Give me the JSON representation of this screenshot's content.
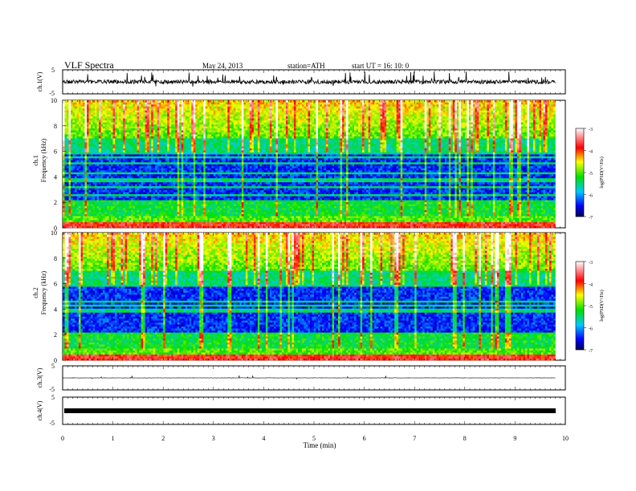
{
  "header": {
    "title": "VLF  Spectra",
    "date": "May 24, 2013",
    "station": "station=ATH",
    "start": "start  UT  =    16: 10: 0"
  },
  "chart_data": [
    {
      "id": "ch1_waveform",
      "type": "line",
      "ylabel": "ch.1(V)",
      "ylim": [
        -5,
        5
      ],
      "yticks": [
        "5",
        "-5"
      ],
      "xlim": [
        0,
        10
      ]
    },
    {
      "id": "ch1_spectrogram",
      "type": "heatmap",
      "ylabel_line1": "ch.1",
      "ylabel_line2": "Frequency  (kHz)",
      "ylim": [
        0,
        10
      ],
      "yticks": [
        "0",
        "2",
        "4",
        "6",
        "8",
        "10"
      ],
      "xlim": [
        0,
        10
      ],
      "data_end_min": 9.8,
      "colorbar": {
        "label": "log(PSD(V²/Hz)",
        "range": [
          -7,
          -3
        ],
        "ticks": [
          "-3",
          "-4",
          "-5",
          "-6",
          "-7"
        ]
      }
    },
    {
      "id": "ch2_spectrogram",
      "type": "heatmap",
      "ylabel_line1": "ch.2",
      "ylabel_line2": "Frequency  (kHz)",
      "ylim": [
        0,
        10
      ],
      "yticks": [
        "0",
        "2",
        "4",
        "6",
        "8",
        "10"
      ],
      "xlim": [
        0,
        10
      ],
      "data_end_min": 9.8,
      "colorbar": {
        "label": "log(PSD(V²/Hz)",
        "range": [
          -7,
          -3
        ],
        "ticks": [
          "-3",
          "-4",
          "-5",
          "-6",
          "-7"
        ]
      }
    },
    {
      "id": "ch3_waveform",
      "type": "line",
      "ylabel": "ch.3(V)",
      "ylim": [
        -5,
        5
      ],
      "yticks": [
        "5",
        "-5"
      ],
      "xlim": [
        0,
        10
      ]
    },
    {
      "id": "ch4_waveform",
      "type": "line",
      "ylabel": "ch.4(V)",
      "ylim": [
        -5,
        5
      ],
      "yticks": [
        "5",
        "-5"
      ],
      "xlim": [
        0,
        10
      ]
    }
  ],
  "xaxis": {
    "label": "Time  (min)",
    "ticks": [
      "0",
      "1",
      "2",
      "3",
      "4",
      "5",
      "6",
      "7",
      "8",
      "9",
      "10"
    ]
  }
}
